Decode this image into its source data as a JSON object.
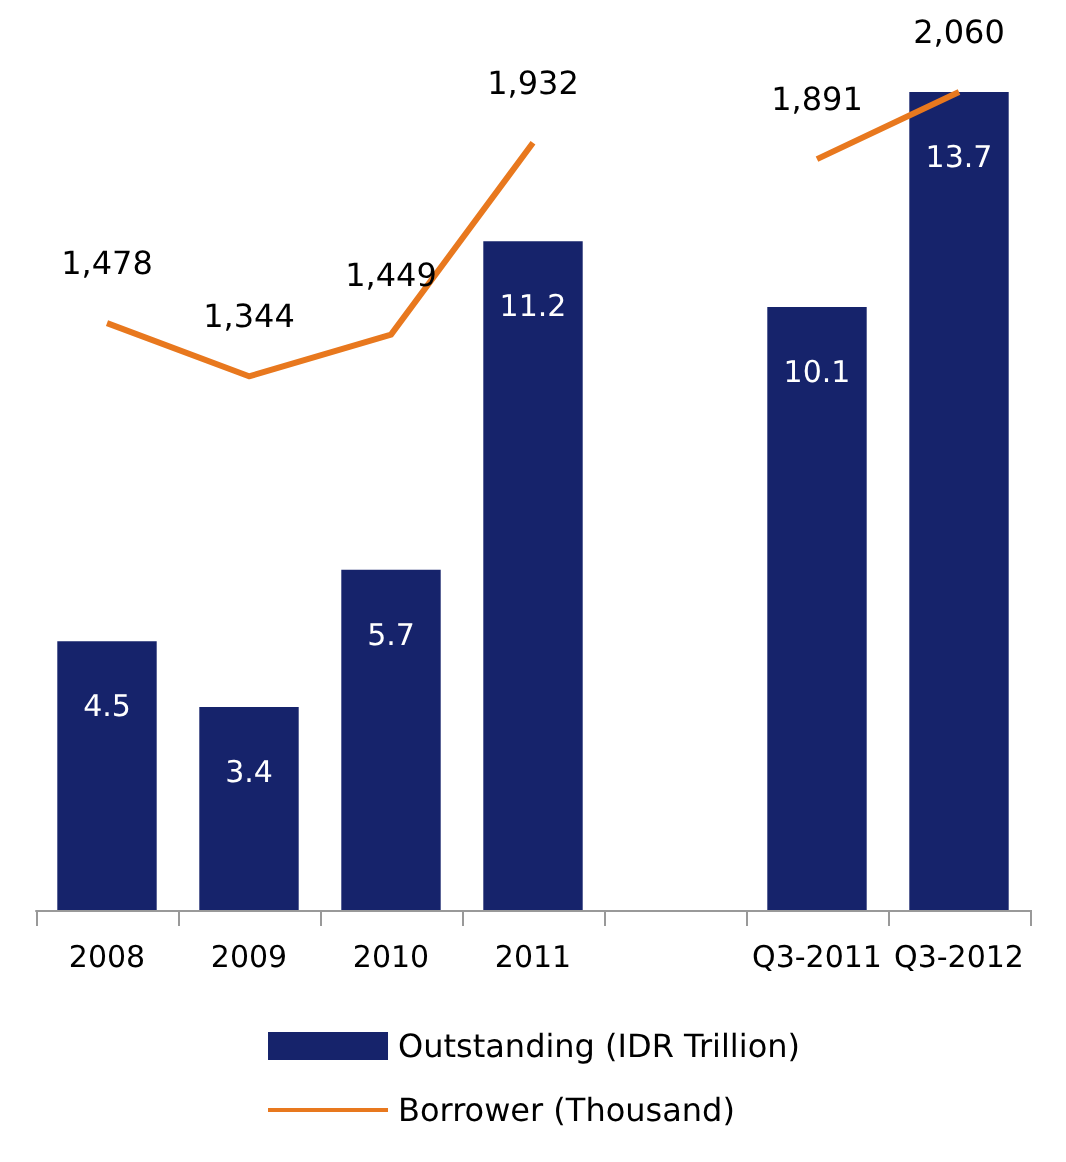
{
  "chart_data": {
    "type": "bar",
    "categories": [
      "2008",
      "2009",
      "2010",
      "2011",
      null,
      "Q3-2011",
      "Q3-2012"
    ],
    "series": [
      {
        "name": "Outstanding (IDR Trillion)",
        "color": "#16236b",
        "values": [
          4.5,
          3.4,
          5.7,
          11.2,
          null,
          10.1,
          13.7
        ]
      },
      {
        "name": "Borrower (Thousand)",
        "type": "line",
        "axis": "y2",
        "color": "#e8781e",
        "values": [
          1478,
          1344,
          1449,
          1932,
          null,
          1891,
          2060
        ],
        "value_labels": [
          "1,478",
          "1,344",
          "1,449",
          "1,932",
          null,
          "1,891",
          "2,060"
        ]
      }
    ],
    "data_labels": true,
    "legend": "bottom",
    "marker": "none"
  }
}
